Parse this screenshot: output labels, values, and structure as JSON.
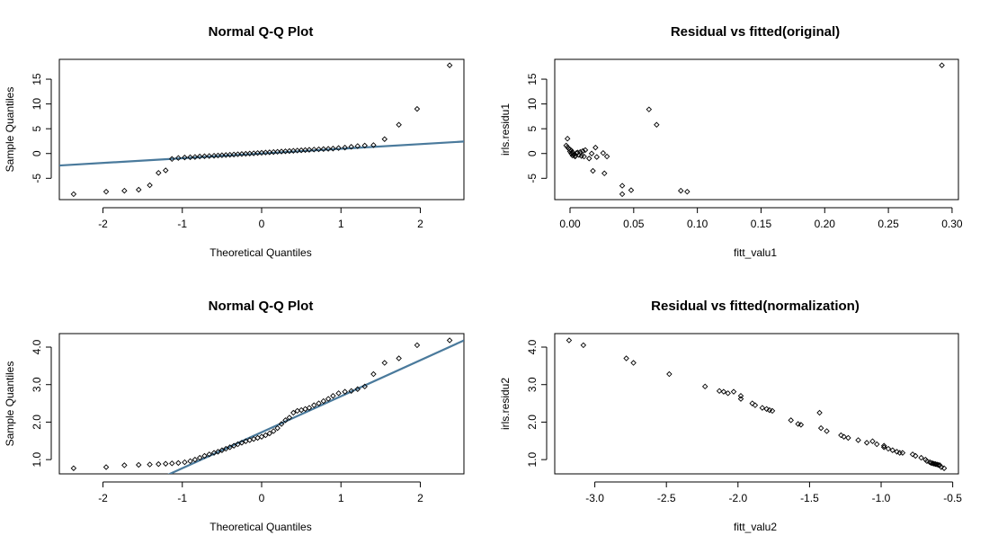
{
  "colors": {
    "background": "#ffffff",
    "ink": "#000000",
    "qqline": "#4a7a9c"
  },
  "chart_data": [
    {
      "type": "scatter",
      "title": "Normal Q-Q Plot",
      "xlabel": "Theoretical Quantiles",
      "ylabel": "Sample Quantiles",
      "xlim": [
        -2.55,
        2.55
      ],
      "ylim": [
        -9.3,
        19.0
      ],
      "xticks": [
        -2,
        -1,
        0,
        1,
        2
      ],
      "yticks": [
        -5,
        0,
        5,
        10,
        15
      ],
      "reference_line": {
        "slope": 0.95,
        "intercept": 0.0
      },
      "points": [
        [
          -2.37,
          -8.2
        ],
        [
          -1.96,
          -7.7
        ],
        [
          -1.73,
          -7.5
        ],
        [
          -1.55,
          -7.3
        ],
        [
          -1.41,
          -6.4
        ],
        [
          -1.3,
          -3.9
        ],
        [
          -1.21,
          -3.4
        ],
        [
          -1.13,
          -1.1
        ],
        [
          -1.05,
          -0.9
        ],
        [
          -0.97,
          -0.8
        ],
        [
          -0.9,
          -0.75
        ],
        [
          -0.84,
          -0.7
        ],
        [
          -0.78,
          -0.6
        ],
        [
          -0.72,
          -0.55
        ],
        [
          -0.66,
          -0.5
        ],
        [
          -0.6,
          -0.45
        ],
        [
          -0.55,
          -0.4
        ],
        [
          -0.5,
          -0.35
        ],
        [
          -0.45,
          -0.3
        ],
        [
          -0.4,
          -0.25
        ],
        [
          -0.35,
          -0.2
        ],
        [
          -0.3,
          -0.15
        ],
        [
          -0.25,
          -0.1
        ],
        [
          -0.2,
          -0.05
        ],
        [
          -0.15,
          0.0
        ],
        [
          -0.1,
          0.05
        ],
        [
          -0.05,
          0.1
        ],
        [
          0.0,
          0.15
        ],
        [
          0.05,
          0.2
        ],
        [
          0.1,
          0.25
        ],
        [
          0.15,
          0.3
        ],
        [
          0.2,
          0.35
        ],
        [
          0.25,
          0.4
        ],
        [
          0.3,
          0.45
        ],
        [
          0.35,
          0.5
        ],
        [
          0.4,
          0.55
        ],
        [
          0.45,
          0.6
        ],
        [
          0.5,
          0.65
        ],
        [
          0.55,
          0.7
        ],
        [
          0.6,
          0.75
        ],
        [
          0.66,
          0.8
        ],
        [
          0.72,
          0.85
        ],
        [
          0.78,
          0.9
        ],
        [
          0.84,
          0.95
        ],
        [
          0.9,
          1.0
        ],
        [
          0.97,
          1.1
        ],
        [
          1.05,
          1.2
        ],
        [
          1.13,
          1.35
        ],
        [
          1.21,
          1.5
        ],
        [
          1.3,
          1.6
        ],
        [
          1.41,
          1.7
        ],
        [
          1.55,
          2.9
        ],
        [
          1.73,
          5.8
        ],
        [
          1.96,
          9.0
        ],
        [
          2.37,
          17.8
        ]
      ]
    },
    {
      "type": "scatter",
      "title": "Residual vs fitted(original)",
      "xlabel": "fitt_valu1",
      "ylabel": "irls.residu1",
      "xlim": [
        -0.012,
        0.305
      ],
      "ylim": [
        -9.3,
        19.0
      ],
      "xticks": [
        0.0,
        0.05,
        0.1,
        0.15,
        0.2,
        0.25,
        0.3
      ],
      "xtick_labels": [
        "0.00",
        "0.05",
        "0.10",
        "0.15",
        "0.20",
        "0.25",
        "0.30"
      ],
      "yticks": [
        -5,
        0,
        5,
        10,
        15
      ],
      "points": [
        [
          -0.002,
          3.0
        ],
        [
          -0.003,
          1.6
        ],
        [
          -0.002,
          1.3
        ],
        [
          -0.001,
          1.0
        ],
        [
          0.0,
          0.8
        ],
        [
          0.001,
          0.6
        ],
        [
          0.0,
          0.4
        ],
        [
          0.002,
          0.2
        ],
        [
          0.001,
          0.0
        ],
        [
          0.003,
          -0.2
        ],
        [
          0.002,
          -0.4
        ],
        [
          0.004,
          -0.5
        ],
        [
          0.003,
          -0.3
        ],
        [
          0.005,
          0.1
        ],
        [
          0.004,
          -0.6
        ],
        [
          0.006,
          0.2
        ],
        [
          0.007,
          -0.3
        ],
        [
          0.008,
          0.3
        ],
        [
          0.009,
          -0.5
        ],
        [
          0.01,
          0.5
        ],
        [
          0.011,
          -0.6
        ],
        [
          0.012,
          0.7
        ],
        [
          0.015,
          -1.0
        ],
        [
          0.017,
          0.0
        ],
        [
          0.018,
          -3.5
        ],
        [
          0.02,
          1.2
        ],
        [
          0.021,
          -0.7
        ],
        [
          0.026,
          0.1
        ],
        [
          0.027,
          -4.0
        ],
        [
          0.029,
          -0.6
        ],
        [
          0.041,
          -6.5
        ],
        [
          0.041,
          -8.2
        ],
        [
          0.048,
          -7.4
        ],
        [
          0.062,
          8.9
        ],
        [
          0.068,
          5.8
        ],
        [
          0.087,
          -7.5
        ],
        [
          0.092,
          -7.7
        ],
        [
          0.292,
          17.8
        ]
      ]
    },
    {
      "type": "scatter",
      "title": "Normal Q-Q Plot",
      "xlabel": "Theoretical Quantiles",
      "ylabel": "Sample Quantiles",
      "xlim": [
        -2.55,
        2.55
      ],
      "ylim": [
        0.62,
        4.36
      ],
      "xticks": [
        -2,
        -1,
        0,
        1,
        2
      ],
      "yticks": [
        1.0,
        2.0,
        3.0,
        4.0
      ],
      "ytick_labels": [
        "1.0",
        "2.0",
        "3.0",
        "4.0"
      ],
      "reference_line": {
        "slope": 0.96,
        "intercept": 1.73
      },
      "points": [
        [
          -2.37,
          0.77
        ],
        [
          -1.96,
          0.8
        ],
        [
          -1.73,
          0.85
        ],
        [
          -1.55,
          0.86
        ],
        [
          -1.41,
          0.87
        ],
        [
          -1.3,
          0.88
        ],
        [
          -1.21,
          0.89
        ],
        [
          -1.13,
          0.9
        ],
        [
          -1.05,
          0.91
        ],
        [
          -0.97,
          0.93
        ],
        [
          -0.9,
          0.96
        ],
        [
          -0.84,
          1.0
        ],
        [
          -0.78,
          1.05
        ],
        [
          -0.72,
          1.1
        ],
        [
          -0.66,
          1.14
        ],
        [
          -0.6,
          1.18
        ],
        [
          -0.55,
          1.21
        ],
        [
          -0.5,
          1.25
        ],
        [
          -0.45,
          1.29
        ],
        [
          -0.4,
          1.33
        ],
        [
          -0.35,
          1.37
        ],
        [
          -0.3,
          1.41
        ],
        [
          -0.25,
          1.45
        ],
        [
          -0.2,
          1.49
        ],
        [
          -0.15,
          1.52
        ],
        [
          -0.1,
          1.55
        ],
        [
          -0.05,
          1.58
        ],
        [
          0.0,
          1.61
        ],
        [
          0.05,
          1.65
        ],
        [
          0.1,
          1.7
        ],
        [
          0.15,
          1.76
        ],
        [
          0.2,
          1.84
        ],
        [
          0.25,
          1.95
        ],
        [
          0.3,
          2.05
        ],
        [
          0.35,
          2.12
        ],
        [
          0.4,
          2.25
        ],
        [
          0.45,
          2.3
        ],
        [
          0.5,
          2.32
        ],
        [
          0.55,
          2.35
        ],
        [
          0.6,
          2.38
        ],
        [
          0.66,
          2.45
        ],
        [
          0.72,
          2.5
        ],
        [
          0.78,
          2.56
        ],
        [
          0.84,
          2.62
        ],
        [
          0.9,
          2.7
        ],
        [
          0.97,
          2.77
        ],
        [
          1.05,
          2.81
        ],
        [
          1.13,
          2.83
        ],
        [
          1.21,
          2.88
        ],
        [
          1.3,
          2.95
        ],
        [
          1.41,
          3.28
        ],
        [
          1.55,
          3.58
        ],
        [
          1.73,
          3.7
        ],
        [
          1.96,
          4.05
        ],
        [
          2.37,
          4.18
        ]
      ]
    },
    {
      "type": "scatter",
      "title": "Residual vs fitted(normalization)",
      "xlabel": "fitt_valu2",
      "ylabel": "irls.residu2",
      "xlim": [
        -3.28,
        -0.46
      ],
      "ylim": [
        0.62,
        4.36
      ],
      "xticks": [
        -3.0,
        -2.5,
        -2.0,
        -1.5,
        -1.0,
        -0.5
      ],
      "xtick_labels": [
        "-3.0",
        "-2.5",
        "-2.0",
        "-1.5",
        "-1.0",
        "-0.5"
      ],
      "yticks": [
        1.0,
        2.0,
        3.0,
        4.0
      ],
      "ytick_labels": [
        "1.0",
        "2.0",
        "3.0",
        "4.0"
      ],
      "points": [
        [
          -3.18,
          4.18
        ],
        [
          -3.08,
          4.05
        ],
        [
          -2.78,
          3.7
        ],
        [
          -2.73,
          3.58
        ],
        [
          -2.48,
          3.28
        ],
        [
          -2.23,
          2.95
        ],
        [
          -2.13,
          2.83
        ],
        [
          -2.1,
          2.81
        ],
        [
          -2.07,
          2.77
        ],
        [
          -2.03,
          2.81
        ],
        [
          -1.98,
          2.7
        ],
        [
          -1.98,
          2.62
        ],
        [
          -1.9,
          2.5
        ],
        [
          -1.88,
          2.45
        ],
        [
          -1.83,
          2.38
        ],
        [
          -1.8,
          2.35
        ],
        [
          -1.78,
          2.32
        ],
        [
          -1.76,
          2.3
        ],
        [
          -1.63,
          2.05
        ],
        [
          -1.58,
          1.95
        ],
        [
          -1.56,
          1.93
        ],
        [
          -1.43,
          2.25
        ],
        [
          -1.42,
          1.84
        ],
        [
          -1.38,
          1.76
        ],
        [
          -1.28,
          1.65
        ],
        [
          -1.26,
          1.61
        ],
        [
          -1.23,
          1.58
        ],
        [
          -1.16,
          1.52
        ],
        [
          -1.1,
          1.45
        ],
        [
          -1.06,
          1.49
        ],
        [
          -1.03,
          1.41
        ],
        [
          -0.98,
          1.37
        ],
        [
          -0.98,
          1.33
        ],
        [
          -0.95,
          1.29
        ],
        [
          -0.92,
          1.25
        ],
        [
          -0.89,
          1.21
        ],
        [
          -0.87,
          1.18
        ],
        [
          -0.85,
          1.18
        ],
        [
          -0.78,
          1.14
        ],
        [
          -0.76,
          1.1
        ],
        [
          -0.72,
          1.05
        ],
        [
          -0.69,
          1.0
        ],
        [
          -0.68,
          0.96
        ],
        [
          -0.66,
          0.93
        ],
        [
          -0.65,
          0.91
        ],
        [
          -0.64,
          0.9
        ],
        [
          -0.63,
          0.89
        ],
        [
          -0.62,
          0.88
        ],
        [
          -0.61,
          0.87
        ],
        [
          -0.6,
          0.86
        ],
        [
          -0.59,
          0.85
        ],
        [
          -0.58,
          0.8
        ],
        [
          -0.56,
          0.77
        ]
      ]
    }
  ]
}
